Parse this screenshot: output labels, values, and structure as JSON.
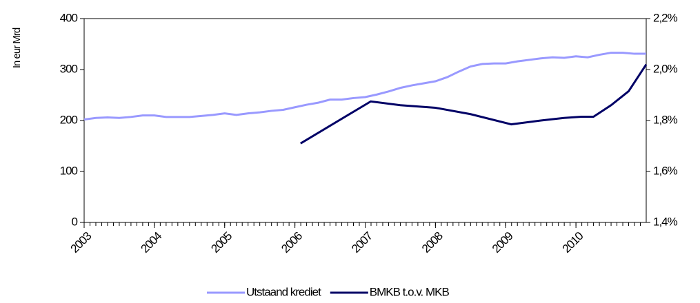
{
  "chart_data": {
    "type": "line",
    "y_label": "In eur Mrd",
    "xlim": [
      2003,
      2011
    ],
    "xticks": [
      2003,
      2004,
      2005,
      2006,
      2007,
      2008,
      2009,
      2010
    ],
    "ylim": [
      0,
      400
    ],
    "yticks": [
      0,
      100,
      200,
      300,
      400
    ],
    "y2lim": [
      1.4,
      2.2
    ],
    "y2ticks": [
      {
        "value": 1.4,
        "label": "1,4%"
      },
      {
        "value": 1.6,
        "label": "1,6%"
      },
      {
        "value": 1.8,
        "label": "1,8%"
      },
      {
        "value": 2.0,
        "label": "2,0%"
      },
      {
        "value": 2.2,
        "label": "2,2%"
      }
    ],
    "legend": "bottom",
    "series": [
      {
        "name": "Utstaand krediet",
        "color": "#9999ff",
        "axis": "y",
        "x": [
          2003,
          2003.167,
          2003.333,
          2003.5,
          2003.667,
          2003.833,
          2004,
          2004.167,
          2004.333,
          2004.5,
          2004.667,
          2004.833,
          2005,
          2005.167,
          2005.333,
          2005.5,
          2005.667,
          2005.833,
          2006,
          2006.167,
          2006.333,
          2006.5,
          2006.667,
          2006.833,
          2007,
          2007.167,
          2007.333,
          2007.5,
          2007.667,
          2007.833,
          2008,
          2008.167,
          2008.333,
          2008.5,
          2008.667,
          2008.833,
          2009,
          2009.167,
          2009.333,
          2009.5,
          2009.667,
          2009.833,
          2010,
          2010.167,
          2010.333,
          2010.5,
          2010.667,
          2010.833,
          2011
        ],
        "values": [
          202,
          205,
          206,
          205,
          207,
          210,
          210,
          207,
          207,
          207,
          209,
          211,
          214,
          211,
          214,
          216,
          219,
          221,
          226,
          231,
          235,
          241,
          241,
          244,
          246,
          251,
          257,
          264,
          269,
          273,
          277,
          285,
          296,
          306,
          311,
          312,
          312,
          316,
          319,
          322,
          324,
          323,
          326,
          324,
          329,
          333,
          333,
          331,
          331
        ]
      },
      {
        "name": "BMKB t.o.v. MKB",
        "color": "#000066",
        "axis": "y2",
        "x": [
          2006.08,
          2007.08,
          2007.5,
          2008,
          2008.5,
          2009.08,
          2009.5,
          2009.83,
          2010.08,
          2010.25,
          2010.5,
          2010.75,
          2011
        ],
        "values": [
          1.71,
          1.875,
          1.86,
          1.85,
          1.825,
          1.785,
          1.8,
          1.81,
          1.815,
          1.815,
          1.86,
          1.915,
          2.02
        ]
      }
    ]
  }
}
